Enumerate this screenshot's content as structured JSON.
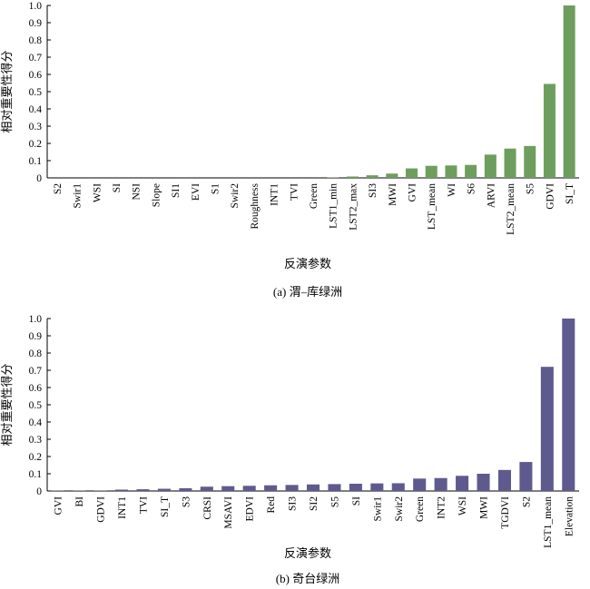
{
  "figure": {
    "xlabel": "反演参数",
    "ylabel": "相对重要性得分"
  },
  "chart_data": [
    {
      "type": "bar",
      "caption": "(a) 渭–库绿洲",
      "xlabel": "反演参数",
      "ylabel": "相对重要性得分",
      "ylim": [
        0,
        1.0
      ],
      "yticks": [
        "0",
        "0.1",
        "0.2",
        "0.3",
        "0.4",
        "0.5",
        "0.6",
        "0.7",
        "0.8",
        "0.9",
        "1.0"
      ],
      "bar_color": "#6e9e5e",
      "categories": [
        "S2",
        "Swir1",
        "WSI",
        "SI",
        "NSI",
        "Slope",
        "SI1",
        "EVI",
        "S1",
        "Swir2",
        "Roughness",
        "INT1",
        "TVI",
        "Green",
        "LST1_min",
        "LST2_max",
        "SI3",
        "MWI",
        "GVI",
        "LST_mean",
        "WI",
        "S6",
        "ARVI",
        "LST2_mean",
        "S5",
        "GDVI",
        "SI_T"
      ],
      "values": [
        0,
        0,
        0,
        0,
        0,
        0,
        0,
        0,
        0,
        0,
        0,
        0,
        0,
        0,
        0.002,
        0.008,
        0.015,
        0.025,
        0.055,
        0.07,
        0.072,
        0.075,
        0.135,
        0.17,
        0.185,
        0.545,
        1.0
      ]
    },
    {
      "type": "bar",
      "caption": "(b) 奇台绿洲",
      "xlabel": "反演参数",
      "ylabel": "相对重要性得分",
      "ylim": [
        0,
        1.0
      ],
      "yticks": [
        "0",
        "0.1",
        "0.2",
        "0.3",
        "0.4",
        "0.5",
        "0.6",
        "0.7",
        "0.8",
        "0.9",
        "1.0"
      ],
      "bar_color": "#5f5a8e",
      "categories": [
        "GVI",
        "BI",
        "GDVI",
        "INT1",
        "TVI",
        "SI_T",
        "S3",
        "CRSI",
        "MSAVI",
        "EDVI",
        "Red",
        "SI3",
        "SI2",
        "S5",
        "SI",
        "Swir1",
        "Swir2",
        "Green",
        "INT2",
        "WSI",
        "MWI",
        "TGDVI",
        "S2",
        "LST1_mean",
        "Elevation"
      ],
      "values": [
        0.002,
        0.002,
        0.003,
        0.008,
        0.01,
        0.013,
        0.016,
        0.025,
        0.028,
        0.03,
        0.033,
        0.035,
        0.038,
        0.04,
        0.042,
        0.044,
        0.045,
        0.072,
        0.075,
        0.088,
        0.1,
        0.122,
        0.168,
        0.72,
        1.0
      ]
    }
  ]
}
